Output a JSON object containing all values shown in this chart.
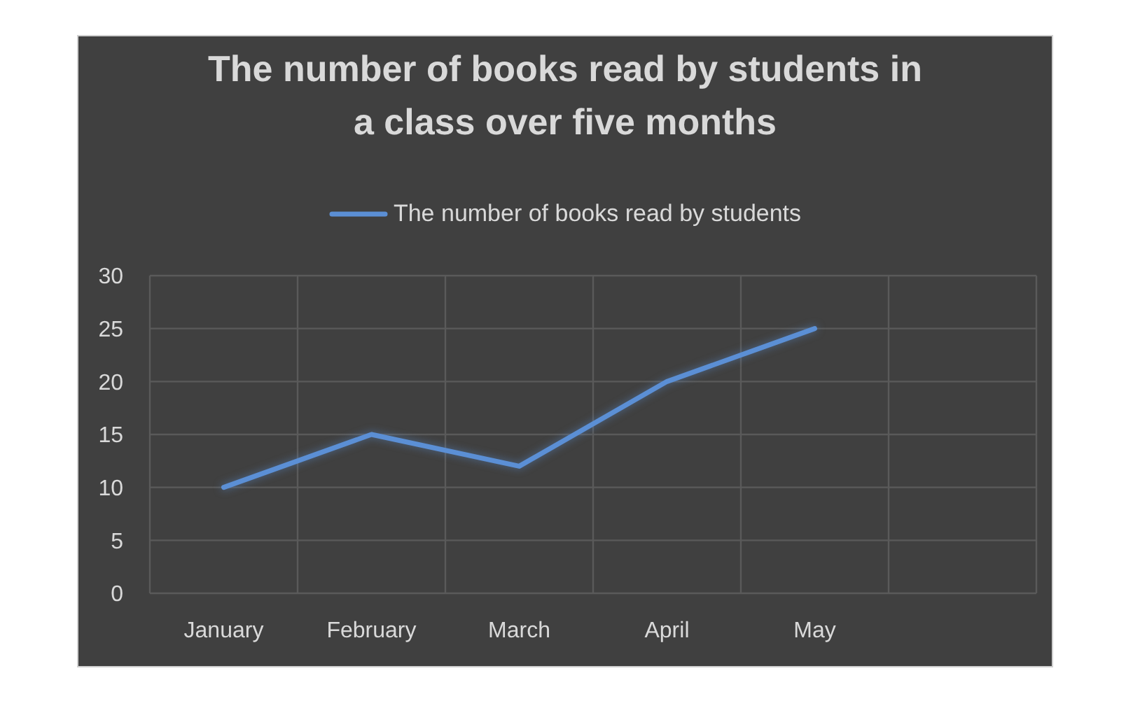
{
  "chart_data": {
    "type": "line",
    "title": "The number of books read by students in a class over five months",
    "categories": [
      "January",
      "February",
      "March",
      "April",
      "May",
      null
    ],
    "series": [
      {
        "name": "The number of books read by students",
        "color": "#5b8fd5",
        "values": [
          10,
          15,
          12,
          20,
          25,
          null
        ]
      }
    ],
    "ylim": [
      0,
      30
    ],
    "yticks": [
      0,
      5,
      10,
      15,
      20,
      25,
      30
    ],
    "grid": true,
    "legend": "top",
    "marker": "none",
    "line_style": "solid"
  }
}
